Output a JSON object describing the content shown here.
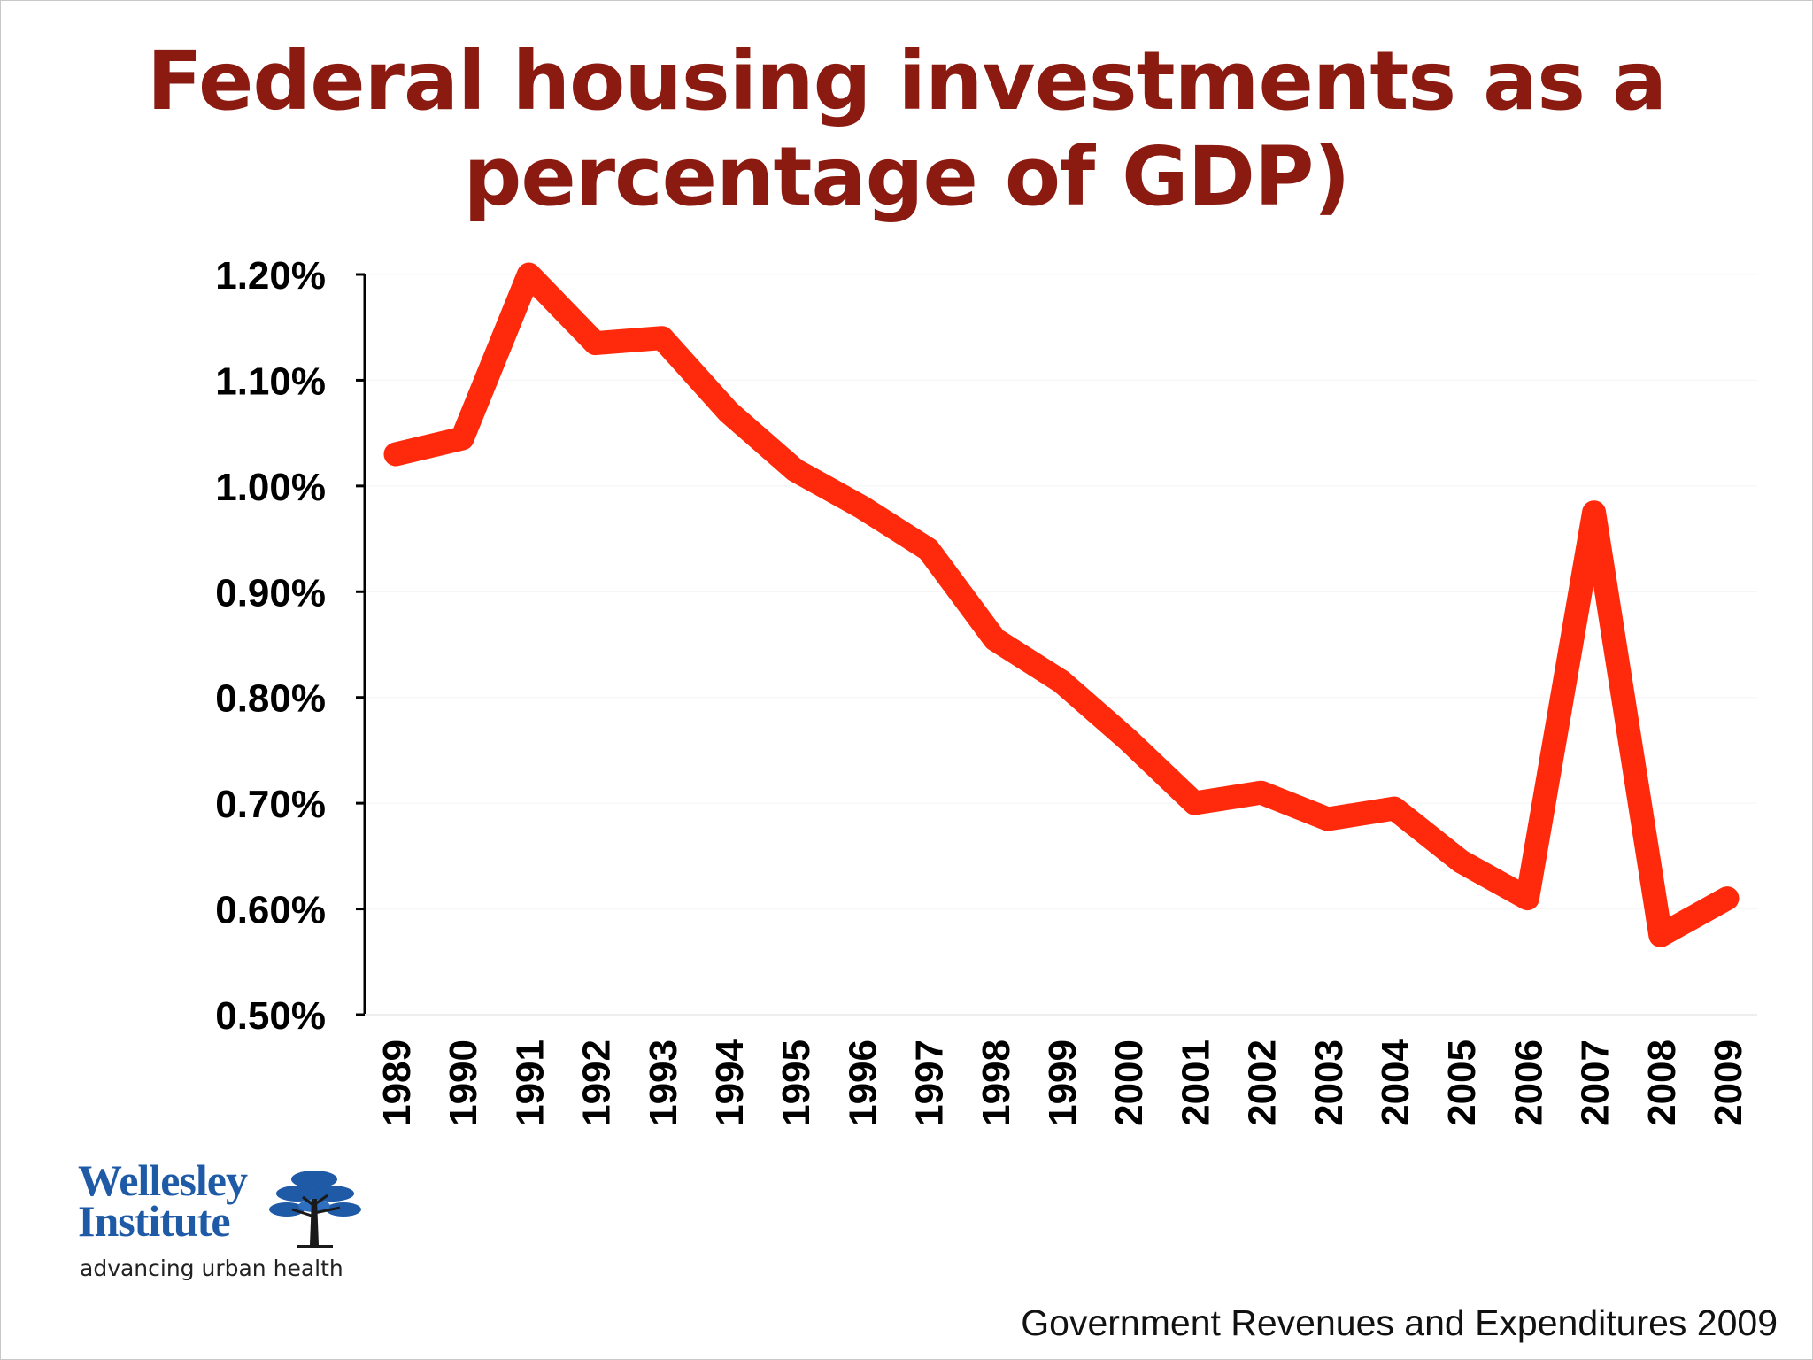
{
  "title_line1": "Federal housing investments as a",
  "title_line2": "percentage of GDP)",
  "source": "Government Revenues and Expenditures 2009",
  "logo": {
    "name_line1": "Wellesley",
    "name_line2": "Institute",
    "tagline": "advancing urban health",
    "icon": "tree-icon"
  },
  "colors": {
    "title": "#8b1a10",
    "line": "#ff2a0c",
    "logo": "#1f5aa6"
  },
  "chart_data": {
    "type": "line",
    "title": "Federal housing investments as a percentage of GDP)",
    "xlabel": "",
    "ylabel": "",
    "x": [
      "1989",
      "1990",
      "1991",
      "1992",
      "1993",
      "1994",
      "1995",
      "1996",
      "1997",
      "1998",
      "1999",
      "2000",
      "2001",
      "2002",
      "2003",
      "2004",
      "2005",
      "2006",
      "2007",
      "2008",
      "2009"
    ],
    "series": [
      {
        "values": [
          1.03,
          1.045,
          1.2,
          1.135,
          1.14,
          1.07,
          1.015,
          0.98,
          0.94,
          0.855,
          0.815,
          0.76,
          0.7,
          0.71,
          0.685,
          0.695,
          0.645,
          0.61,
          0.975,
          0.575,
          0.61
        ]
      }
    ],
    "ylim": [
      0.5,
      1.2
    ],
    "yticks": [
      "0.50%",
      "0.60%",
      "0.70%",
      "0.80%",
      "0.90%",
      "1.00%",
      "1.10%",
      "1.20%"
    ],
    "grid": false,
    "legend": "none"
  }
}
